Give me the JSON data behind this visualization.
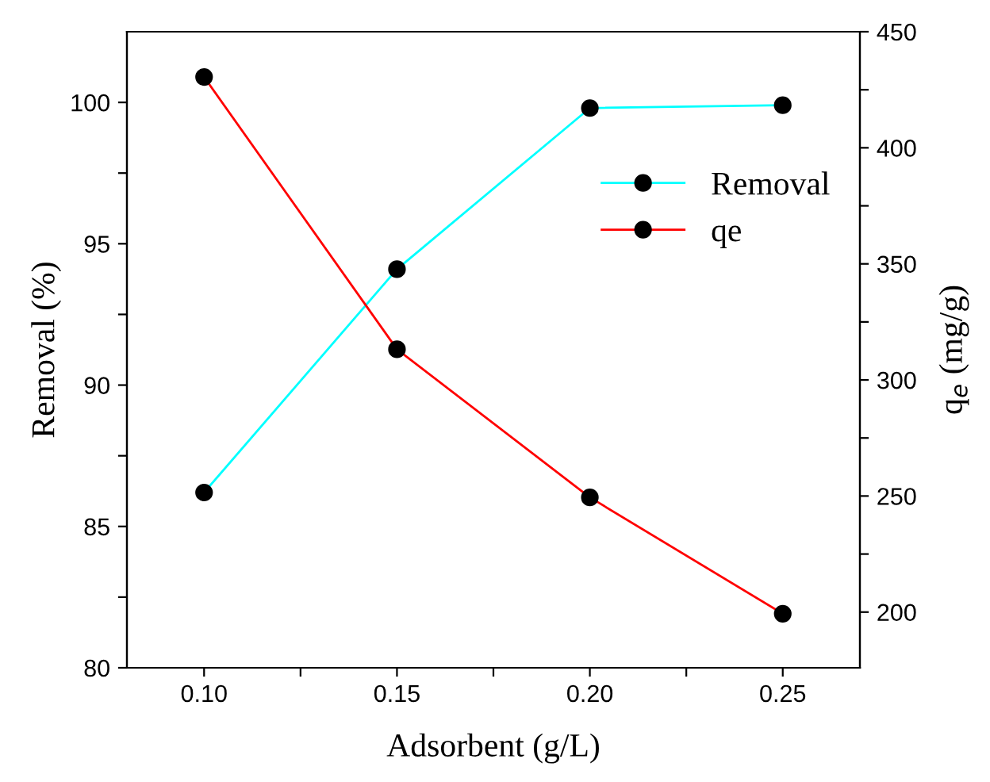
{
  "chart_data": {
    "type": "line",
    "xlabel": "Adsorbent (g/L)",
    "ylabel": "Removal (%)",
    "y2label": "q$_{e}$ (mg/g)",
    "x": [
      0.1,
      0.15,
      0.2,
      0.25
    ],
    "series": [
      {
        "name": "Removal",
        "color": "#00ffff",
        "values": [
          86.2,
          94.1,
          99.8,
          99.9
        ]
      },
      {
        "name": "qe",
        "color": "#ff0000",
        "values": [
          430.5,
          313.2,
          249.4,
          199.3
        ],
        "axis": "y2"
      }
    ],
    "marker": "circle",
    "line_style": "solid",
    "legend": "right",
    "grid": false,
    "xlim": [
      0.08,
      0.27
    ],
    "xticks": [
      {
        "value": 0.1,
        "label": "0.10"
      },
      {
        "value": 0.125,
        "label": null
      },
      {
        "value": 0.15,
        "label": "0.15"
      },
      {
        "value": 0.175,
        "label": null
      },
      {
        "value": 0.2,
        "label": "0.20"
      },
      {
        "value": 0.225,
        "label": null
      },
      {
        "value": 0.25,
        "label": "0.25"
      }
    ],
    "ylim": [
      80,
      102.5
    ],
    "yticks": [
      80,
      {
        "value": 82.5,
        "label": null
      },
      85,
      {
        "value": 87.5,
        "label": null
      },
      90,
      {
        "value": 92.5,
        "label": null
      },
      95,
      {
        "value": 97.5,
        "label": null
      },
      100
    ],
    "y2lim": [
      176,
      450
    ],
    "y2ticks": [
      200,
      {
        "value": 225,
        "label": null
      },
      250,
      {
        "value": 275,
        "label": null
      },
      300,
      {
        "value": 325,
        "label": null
      },
      350,
      {
        "value": 375,
        "label": null
      },
      400,
      {
        "value": 425,
        "label": null
      },
      450
    ]
  }
}
